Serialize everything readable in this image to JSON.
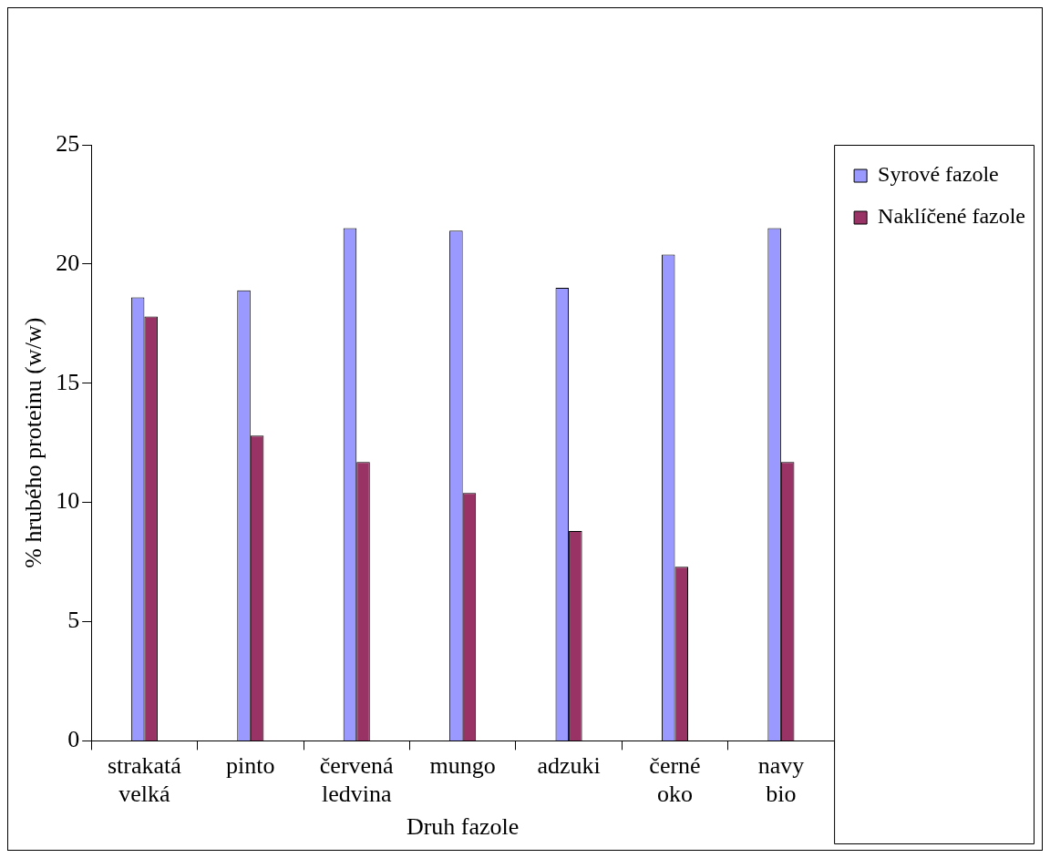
{
  "chart_data": {
    "type": "bar",
    "xlabel": "Druh fazole",
    "ylabel": "% hrubého proteinu (w/w)",
    "categories": [
      "strakatá velká",
      "pinto",
      "červená ledvina",
      "mungo",
      "adzuki",
      "černé oko",
      "navy bio"
    ],
    "series": [
      {
        "name": "Syrové fazole",
        "color": "#9999ff",
        "values": [
          18.6,
          18.9,
          21.5,
          21.4,
          19.0,
          20.4,
          21.5
        ]
      },
      {
        "name": "Naklíčené fazole",
        "color": "#993366",
        "values": [
          17.8,
          12.8,
          11.7,
          10.4,
          8.8,
          7.3,
          11.7
        ]
      }
    ],
    "ylim": [
      0,
      25
    ],
    "yticks": [
      0,
      5,
      10,
      15,
      20,
      25
    ],
    "grid": false,
    "legend": "top right"
  }
}
